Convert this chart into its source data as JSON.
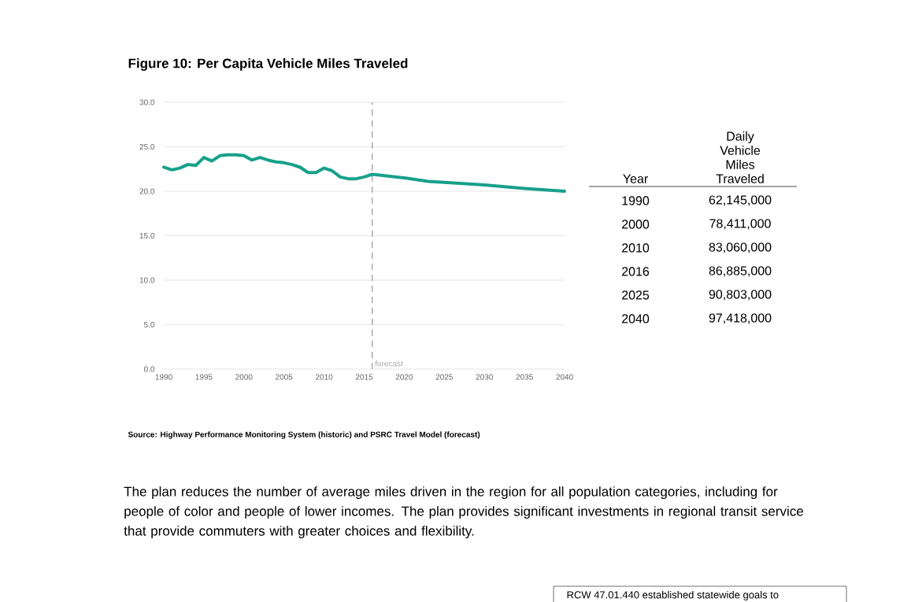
{
  "chart_data": {
    "type": "line",
    "title": "Figure 10:  Per Capita Vehicle Miles Traveled",
    "x": [
      1990,
      1991,
      1992,
      1993,
      1994,
      1995,
      1996,
      1997,
      1998,
      1999,
      2000,
      2001,
      2002,
      2003,
      2004,
      2005,
      2006,
      2007,
      2008,
      2009,
      2010,
      2011,
      2012,
      2013,
      2014,
      2015,
      2016,
      2018,
      2020,
      2023,
      2025,
      2030,
      2035,
      2040
    ],
    "series": [
      {
        "color": "#17a08a",
        "values": [
          22.7,
          22.4,
          22.6,
          23.0,
          22.9,
          23.8,
          23.4,
          24.0,
          24.1,
          24.1,
          24.0,
          23.5,
          23.8,
          23.5,
          23.3,
          23.2,
          23.0,
          22.7,
          22.1,
          22.1,
          22.6,
          22.3,
          21.6,
          21.4,
          21.4,
          21.6,
          21.9,
          21.7,
          21.5,
          21.1,
          21.0,
          20.7,
          20.3,
          20.0
        ]
      }
    ],
    "xlim": [
      1990,
      2040
    ],
    "ylim": [
      0,
      30
    ],
    "xticks": [
      1990,
      1995,
      2000,
      2005,
      2010,
      2015,
      2020,
      2025,
      2030,
      2035,
      2040
    ],
    "yticks": [
      {
        "value": 0,
        "label": "0.0"
      },
      {
        "value": 5,
        "label": "5.0"
      },
      {
        "value": 10,
        "label": "10.0"
      },
      {
        "value": 15,
        "label": "15.0"
      },
      {
        "value": 20,
        "label": "20.0"
      },
      {
        "value": 25,
        "label": "25.0"
      },
      {
        "value": 30,
        "label": "30.0"
      }
    ],
    "grid": "y",
    "ref_lines": [
      {
        "axis": "x",
        "value": 2016,
        "label": "forecast",
        "color": "#aaaaaa",
        "line_style": "dashed"
      }
    ],
    "annotations": [
      "Source:  Highway Performance Monitoring System (historic) and PSRC Travel Model (forecast)",
      "The plan reduces the number of average miles driven in the region for all population categories, including for people of color and people of lower incomes. The plan provides significant investments in regional transit service that provide commuters with greater choices and flexibility.",
      "RCW 47.01.440 established statewide goals to",
      "Year",
      "Daily Vehicle Miles Traveled",
      "1990",
      "62,145,000",
      "2000",
      "78,411,000",
      "2010",
      "83,060,000",
      "2016",
      "86,885,000",
      "2025",
      "90,803,000",
      "2040",
      "97,418,000"
    ]
  }
}
